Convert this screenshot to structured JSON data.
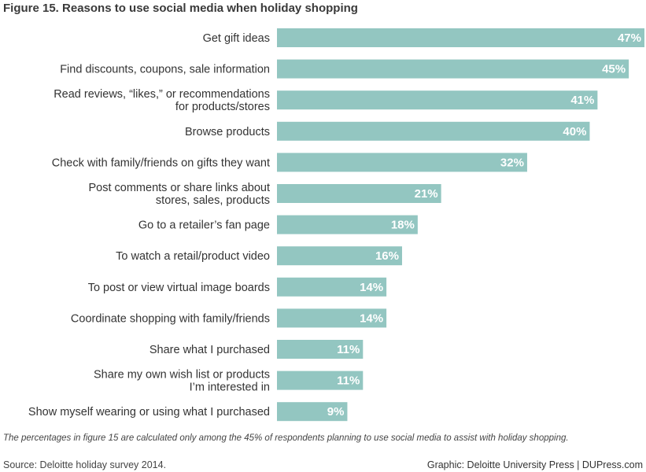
{
  "chart_data": {
    "type": "bar",
    "orientation": "horizontal",
    "title": "Figure 15. Reasons to use social media when holiday shopping",
    "categories": [
      [
        "Get gift ideas"
      ],
      [
        "Find discounts, coupons, sale information"
      ],
      [
        "Read reviews, “likes,” or recommendations",
        "for products/stores"
      ],
      [
        "Browse products"
      ],
      [
        "Check with family/friends on gifts they want"
      ],
      [
        "Post comments  or share links about",
        "stores, sales, products"
      ],
      [
        "Go to a retailer’s fan page"
      ],
      [
        "To watch a retail/product video"
      ],
      [
        "To post or view virtual image boards"
      ],
      [
        "Coordinate shopping with family/friends"
      ],
      [
        "Share what I purchased"
      ],
      [
        "Share my own wish list or products",
        "I’m interested in"
      ],
      [
        "Show myself wearing or using what I purchased"
      ]
    ],
    "values": [
      47,
      45,
      41,
      40,
      32,
      21,
      18,
      16,
      14,
      14,
      11,
      11,
      9
    ],
    "value_labels": [
      "47%",
      "45%",
      "41%",
      "40%",
      "32%",
      "21%",
      "18%",
      "16%",
      "14%",
      "14%",
      "11%",
      "11%",
      "9%"
    ],
    "xlim": [
      0,
      47
    ],
    "bar_color": "#93c6c1",
    "grid": false,
    "legend": "none"
  },
  "note": "The percentages in figure 15 are calculated only among the 45% of respondents planning to use social media to assist with holiday shopping.",
  "source": "Source: Deloitte holiday survey 2014.",
  "credit": "Graphic: Deloitte University Press  |  DUPress.com"
}
